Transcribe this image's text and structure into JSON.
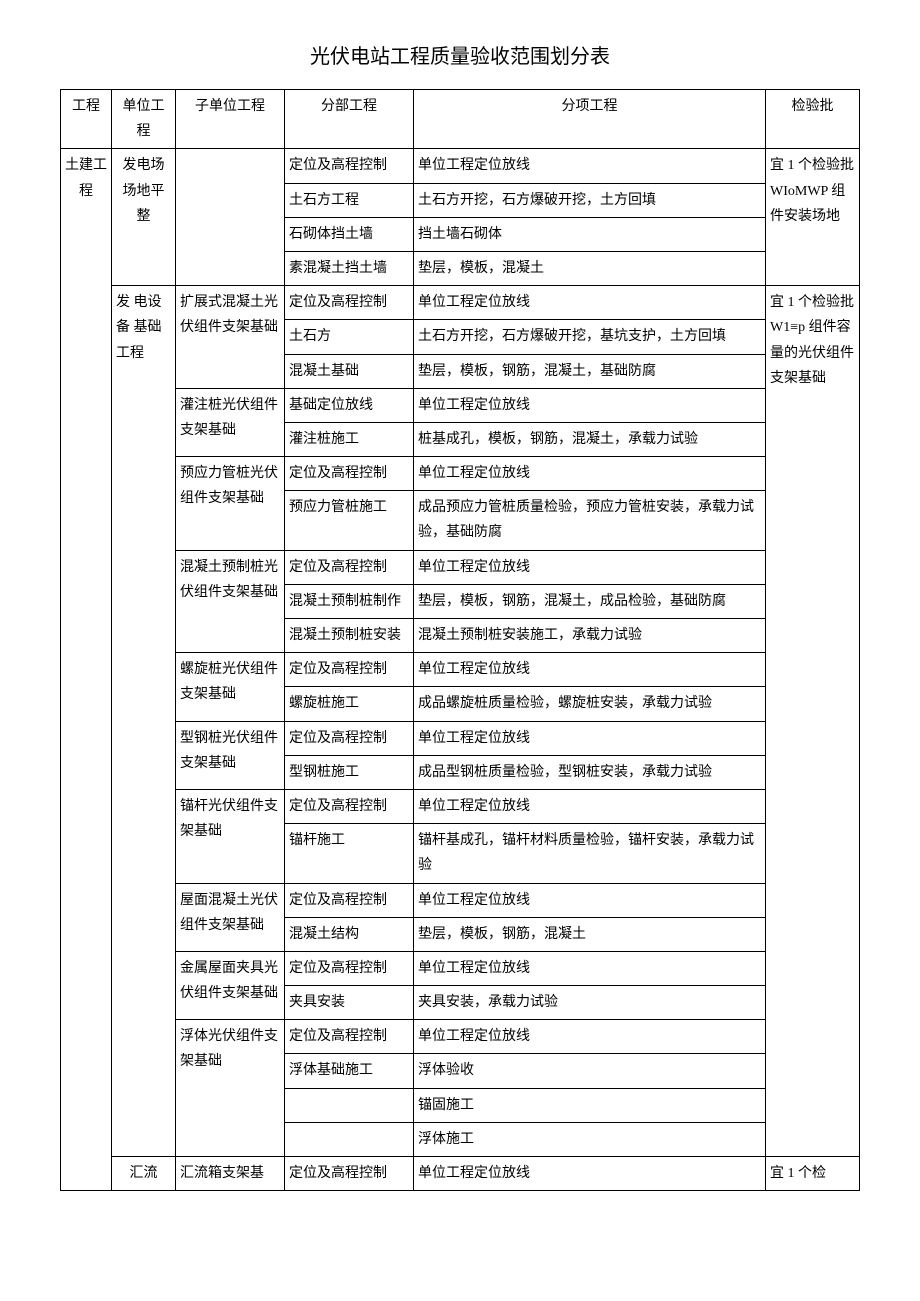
{
  "title": "光伏电站工程质量验收范围划分表",
  "headers": {
    "c1": "工程",
    "c2": "单位工程",
    "c3": "子单位工程",
    "c4": "分部工程",
    "c5": "分项工程",
    "c6": "检验批"
  },
  "col1": {
    "r1": "土建工程"
  },
  "col2": {
    "unit1": "发电场场地平整",
    "unit2": "发 电设 备 基础工程",
    "unit3": "汇流"
  },
  "col3": {
    "su1": "扩展式混凝土光伏组件支架基础",
    "su2": "灌注桩光伏组件支架基础",
    "su3": "预应力管桩光伏组件支架基础",
    "su4": "混凝土预制桩光伏组件支架基础",
    "su5": "螺旋桩光伏组件支架基础",
    "su6": "型钢桩光伏组件支架基础",
    "su7": "锚杆光伏组件支架基础",
    "su8": "屋面混凝土光伏组件支架基础",
    "su9": "金属屋面夹具光伏组件支架基础",
    "su10": "浮体光伏组件支架基础",
    "su11": "汇流箱支架基"
  },
  "col4": {
    "d1": "定位及高程控制",
    "d2": "土石方工程",
    "d3": "石砌体挡土墙",
    "d4": "素混凝土挡土墙",
    "d5": "定位及高程控制",
    "d6": "土石方",
    "d7": "混凝土基础",
    "d8": "基础定位放线",
    "d9": "灌注桩施工",
    "d10": "定位及高程控制",
    "d11": "预应力管桩施工",
    "d12": "定位及高程控制",
    "d13": "混凝土预制桩制作",
    "d14": "混凝土预制桩安装",
    "d15": "定位及高程控制",
    "d16": "螺旋桩施工",
    "d17": "定位及高程控制",
    "d18": "型钢桩施工",
    "d19": "定位及高程控制",
    "d20": "锚杆施工",
    "d21": "定位及高程控制",
    "d22": "混凝土结构",
    "d23": "定位及高程控制",
    "d24": "夹具安装",
    "d25": "定位及高程控制",
    "d26": "浮体基础施工",
    "d27": "",
    "d28": "",
    "d29": "定位及高程控制"
  },
  "col5": {
    "i1": "单位工程定位放线",
    "i2": "土石方开挖，石方爆破开挖，土方回填",
    "i3": "挡土墙石砌体",
    "i4": "垫层，模板，混凝土",
    "i5": "单位工程定位放线",
    "i6": "土石方开挖，石方爆破开挖，基坑支护，土方回填",
    "i7": "垫层，模板，钢筋，混凝土，基础防腐",
    "i8": "单位工程定位放线",
    "i9": "桩基成孔，模板，钢筋，混凝土，承载力试验",
    "i10": "单位工程定位放线",
    "i11": "成品预应力管桩质量检验，预应力管桩安装，承载力试验，基础防腐",
    "i12": "单位工程定位放线",
    "i13": "垫层，模板，钢筋，混凝土，成品检验，基础防腐",
    "i14": "混凝土预制桩安装施工，承载力试验",
    "i15": "单位工程定位放线",
    "i16": "成品螺旋桩质量检验，螺旋桩安装，承载力试验",
    "i17": "单位工程定位放线",
    "i18": "成品型钢桩质量检验，型钢桩安装，承载力试验",
    "i19": "单位工程定位放线",
    "i20": "锚杆基成孔，锚杆材料质量检验，锚杆安装，承载力试验",
    "i21": "单位工程定位放线",
    "i22": "垫层，模板，钢筋，混凝土",
    "i23": "单位工程定位放线",
    "i24": "夹具安装，承载力试验",
    "i25": "单位工程定位放线",
    "i26": "浮体验收",
    "i27": "锚固施工",
    "i28": "浮体施工",
    "i29": "单位工程定位放线"
  },
  "col6": {
    "b1": "宜 1 个检验批 WIoMWP 组件安装场地",
    "b2": "宜 1 个检验批 W1≡p 组件容量的光伏组件支架基础",
    "b3": "宜 1 个检"
  }
}
